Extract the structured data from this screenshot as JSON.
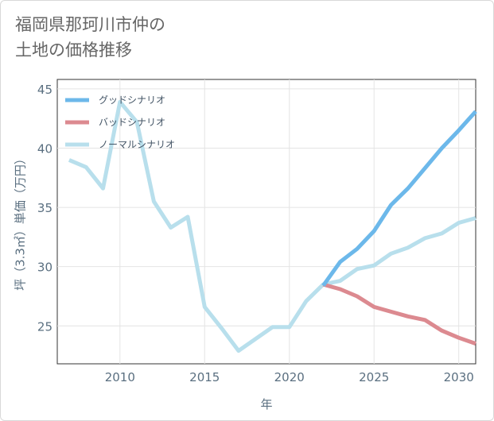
{
  "title": {
    "line1": "福岡県那珂川市仲の",
    "line2": "土地の価格推移"
  },
  "chart_data": {
    "type": "line",
    "xlabel": "年",
    "ylabel": "坪（3.3㎡）単価（万円）",
    "xlim": [
      2006.3,
      2031
    ],
    "ylim": [
      21.8,
      45.8
    ],
    "xticks": [
      2010,
      2015,
      2020,
      2025,
      2030
    ],
    "yticks": [
      25,
      30,
      35,
      40,
      45
    ],
    "xtick_labels": [
      "2010",
      "2015",
      "2020",
      "2025",
      "2030"
    ],
    "ytick_labels": [
      "25",
      "30",
      "35",
      "40",
      "45"
    ],
    "grid": true,
    "legend_position": "top-left",
    "series": [
      {
        "name": "グッドシナリオ",
        "color": "#6cb8ea",
        "x": [
          2022,
          2023,
          2024,
          2025,
          2026,
          2027,
          2028,
          2029,
          2030,
          2031
        ],
        "values": [
          28.4,
          30.4,
          31.5,
          33.0,
          35.2,
          36.6,
          38.3,
          40.0,
          41.5,
          43.1
        ]
      },
      {
        "name": "バッドシナリオ",
        "color": "#dc8a90",
        "x": [
          2022,
          2023,
          2024,
          2025,
          2026,
          2027,
          2028,
          2029,
          2030,
          2031
        ],
        "values": [
          28.5,
          28.1,
          27.5,
          26.6,
          26.2,
          25.8,
          25.5,
          24.6,
          24.0,
          23.5
        ]
      },
      {
        "name": "ノーマルシナリオ",
        "color": "#b8dfec",
        "x": [
          2007,
          2008,
          2009,
          2010,
          2011,
          2012,
          2013,
          2014,
          2015,
          2016,
          2017,
          2018,
          2019,
          2020,
          2021,
          2022,
          2023,
          2024,
          2025,
          2026,
          2027,
          2028,
          2029,
          2030,
          2031
        ],
        "values": [
          39.0,
          38.4,
          36.6,
          43.9,
          42.2,
          35.5,
          33.3,
          34.2,
          26.6,
          24.8,
          22.9,
          23.9,
          24.9,
          24.9,
          27.1,
          28.5,
          28.8,
          29.8,
          30.1,
          31.1,
          31.6,
          32.4,
          32.8,
          33.7,
          34.1
        ]
      }
    ]
  }
}
